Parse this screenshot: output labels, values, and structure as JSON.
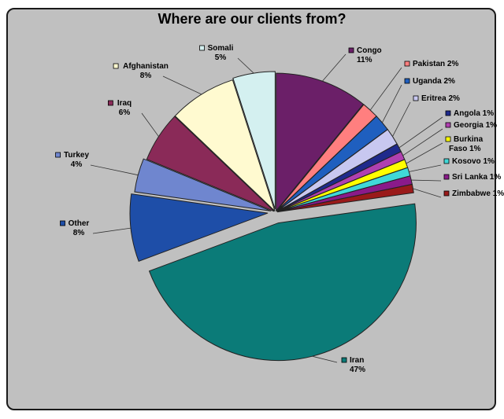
{
  "chart_data": {
    "type": "pie",
    "title": "Where are our clients from?",
    "slices": [
      {
        "label": "Congo",
        "pct_text": "11%",
        "value": 11,
        "color": "#6b1f68"
      },
      {
        "label": "Pakistan",
        "pct_text": "2%",
        "value": 2,
        "color": "#ff7f7f"
      },
      {
        "label": "Uganda",
        "pct_text": "2%",
        "value": 2,
        "color": "#1f5fbf"
      },
      {
        "label": "Eritrea",
        "pct_text": "2%",
        "value": 2,
        "color": "#c8c8f0"
      },
      {
        "label": "Angola",
        "pct_text": "1%",
        "value": 1,
        "color": "#1f2a8c"
      },
      {
        "label": "Georgia",
        "pct_text": "1%",
        "value": 1,
        "color": "#b040b0"
      },
      {
        "label": "Burkina Faso",
        "pct_text": "1%",
        "value": 1,
        "color": "#ffff00"
      },
      {
        "label": "Kosovo",
        "pct_text": "1%",
        "value": 1,
        "color": "#40d8d8"
      },
      {
        "label": "Sri Lanka",
        "pct_text": "1%",
        "value": 1,
        "color": "#8a1a8a"
      },
      {
        "label": "Zimbabwe",
        "pct_text": "1%",
        "value": 1,
        "color": "#9a1a1a"
      },
      {
        "label": "Iran",
        "pct_text": "47%",
        "value": 47,
        "color": "#0b7b78"
      },
      {
        "label": "Other",
        "pct_text": "8%",
        "value": 8,
        "color": "#1e4ea8"
      },
      {
        "label": "Turkey",
        "pct_text": "4%",
        "value": 4,
        "color": "#6f86cf"
      },
      {
        "label": "Iraq",
        "pct_text": "6%",
        "value": 6,
        "color": "#8a2a58"
      },
      {
        "label": "Afghanistan",
        "pct_text": "8%",
        "value": 8,
        "color": "#fffad0"
      },
      {
        "label": "Somali",
        "pct_text": "5%",
        "value": 5,
        "color": "#d4f0f0"
      }
    ],
    "legend": "none"
  }
}
